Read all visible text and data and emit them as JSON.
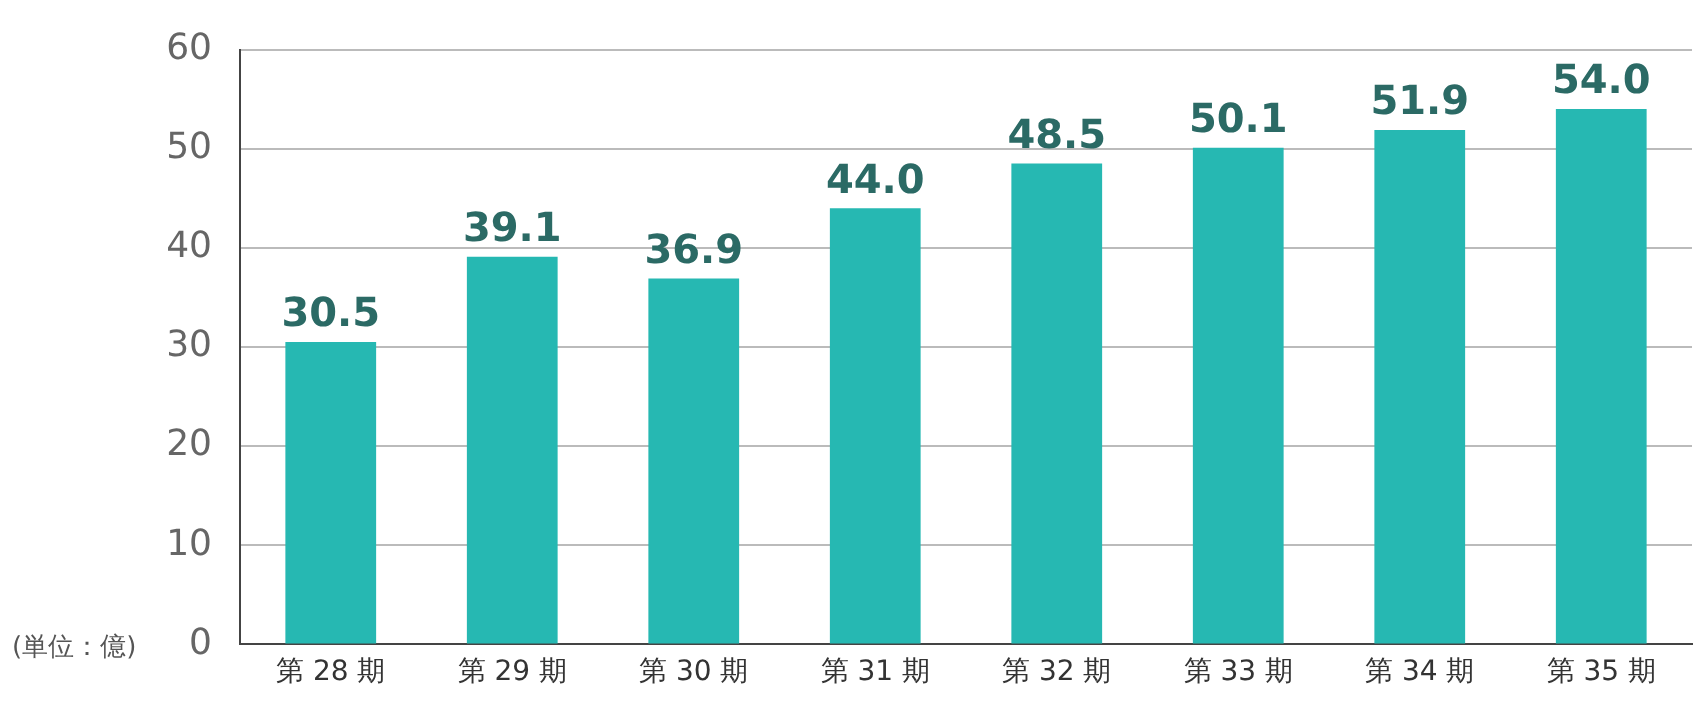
{
  "chart_data": {
    "type": "bar",
    "categories": [
      "第 28 期",
      "第 29 期",
      "第 30 期",
      "第 31 期",
      "第 32 期",
      "第 33 期",
      "第 34 期",
      "第 35 期"
    ],
    "values": [
      30.5,
      39.1,
      36.9,
      44.0,
      48.5,
      50.1,
      51.9,
      54.0
    ],
    "value_labels": [
      "30.5",
      "39.1",
      "36.9",
      "44.0",
      "48.5",
      "50.1",
      "51.9",
      "54.0"
    ],
    "color": "#26b8b2",
    "ylim": [
      0,
      60
    ],
    "yticks": [
      0,
      10,
      20,
      30,
      40,
      50,
      60
    ],
    "grid": "y",
    "legend": false,
    "annotations": [
      "(単位：億)"
    ]
  }
}
